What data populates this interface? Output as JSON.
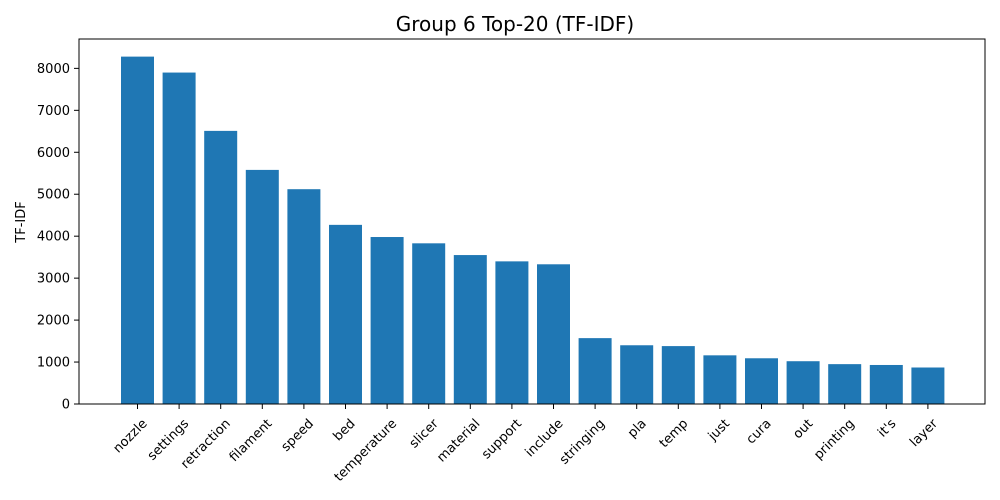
{
  "chart_data": {
    "type": "bar",
    "title": "Group 6 Top-20 (TF-IDF)",
    "xlabel": "",
    "ylabel": "TF-IDF",
    "categories": [
      "nozzle",
      "settings",
      "retraction",
      "filament",
      "speed",
      "bed",
      "temperature",
      "slicer",
      "material",
      "support",
      "include",
      "stringing",
      "pla",
      "temp",
      "just",
      "cura",
      "out",
      "printing",
      "it's",
      "layer"
    ],
    "values": [
      8280,
      7900,
      6510,
      5580,
      5120,
      4270,
      3980,
      3830,
      3550,
      3400,
      3330,
      1570,
      1400,
      1380,
      1160,
      1090,
      1020,
      950,
      930,
      870
    ],
    "ylim": [
      0,
      8700
    ],
    "yticks": [
      0,
      1000,
      2000,
      3000,
      4000,
      5000,
      6000,
      7000,
      8000
    ],
    "bar_color": "#1f77b4",
    "grid": false
  }
}
